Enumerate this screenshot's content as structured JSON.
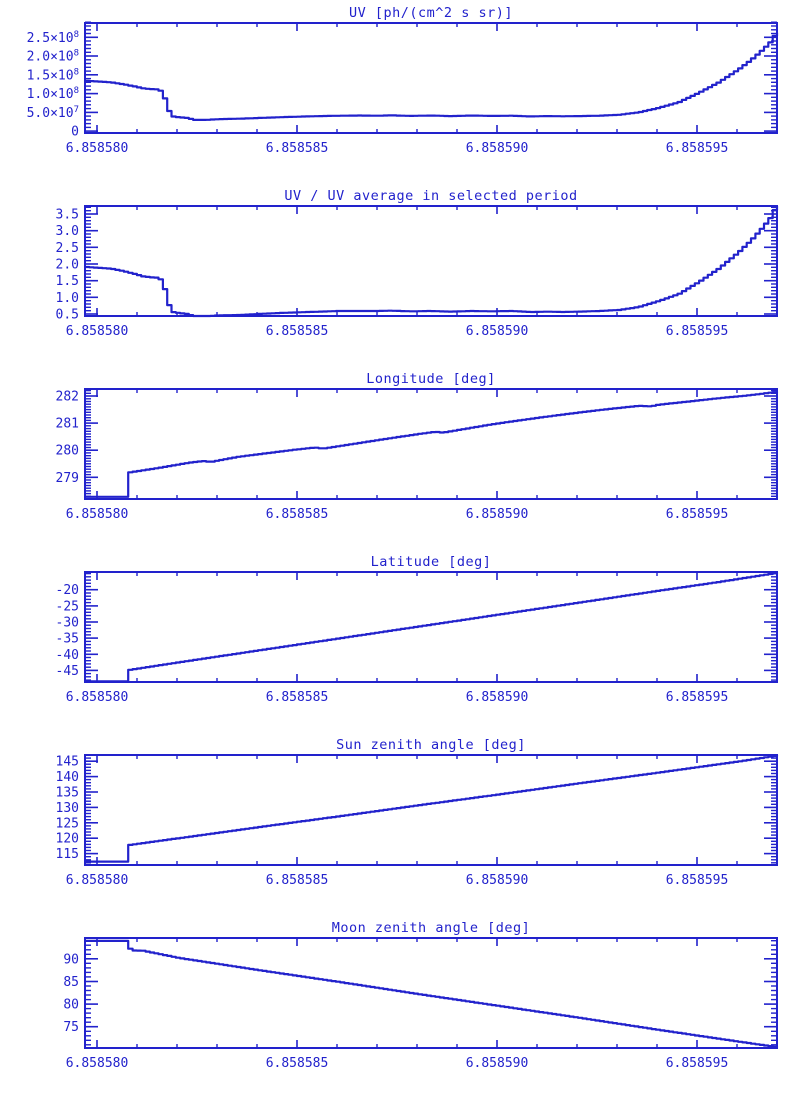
{
  "page": {
    "background": "#ffffff",
    "accent": "#2222cc"
  },
  "chart_data": [
    {
      "type": "line",
      "title": "UV [ph/(cm^2 s sr)]",
      "xlim": [
        6.8585797,
        6.858597
      ],
      "ylim": [
        -5000000.0,
        288000000.0
      ],
      "xticks": {
        "values": [
          6.85858,
          6.858585,
          6.85859,
          6.858595
        ],
        "labels": [
          "6.858580",
          "6.858585",
          "6.858590",
          "6.858595"
        ]
      },
      "xminor": 1e-06,
      "yticks": {
        "values": [
          0,
          50000000.0,
          100000000.0,
          150000000.0,
          200000000.0,
          250000000.0
        ],
        "labels": [
          "0",
          "5.0×10^7",
          "1.0×10^8",
          "1.5×10^8",
          "2.0×10^8",
          "2.5×10^8"
        ]
      },
      "yminor": 10000000.0,
      "series": [
        {
          "name": "UV",
          "x": [
            6.8585797,
            6.8585803,
            6.8585806,
            6.8585809,
            6.8585811,
            6.8585813,
            6.8585815,
            6.8585816,
            6.8585817,
            6.8585818,
            6.858582,
            6.8585822,
            6.8585824,
            6.8585827,
            6.858583,
            6.8585835,
            6.858584,
            6.8585845,
            6.858585,
            6.8585855,
            6.858586,
            6.8585865,
            6.858587,
            6.8585873,
            6.8585878,
            6.8585883,
            6.8585888,
            6.8585893,
            6.8585898,
            6.8585903,
            6.8585908,
            6.8585912,
            6.8585916,
            6.858592,
            6.8585925,
            6.858593,
            6.8585935,
            6.858594,
            6.8585945,
            6.858595,
            6.8585955,
            6.858596,
            6.8585963,
            6.8585966,
            6.8585968,
            6.8585969,
            6.85859695,
            6.858597
          ],
          "y": [
            134000000.0,
            130000000.0,
            125000000.0,
            119000000.0,
            114000000.0,
            112000000.0,
            111000000.0,
            102000000.0,
            70000000.0,
            40000000.0,
            37000000.0,
            35000000.0,
            30000000.0,
            30000000.0,
            32000000.0,
            33000000.0,
            35000000.0,
            37000000.0,
            38500000.0,
            40000000.0,
            41000000.0,
            41500000.0,
            41000000.0,
            42000000.0,
            40500000.0,
            41500000.0,
            40000000.0,
            41500000.0,
            40500000.0,
            41000000.0,
            39000000.0,
            40000000.0,
            39500000.0,
            40000000.0,
            41000000.0,
            43500000.0,
            50000000.0,
            62000000.0,
            77000000.0,
            102000000.0,
            130000000.0,
            165000000.0,
            189000000.0,
            217000000.0,
            238000000.0,
            255000000.0,
            245000000.0,
            262000000.0
          ]
        }
      ]
    },
    {
      "type": "line",
      "title": "UV / UV average in selected period",
      "xlim": [
        6.8585797,
        6.858597
      ],
      "ylim": [
        0.44,
        3.74
      ],
      "xticks": {
        "values": [
          6.85858,
          6.858585,
          6.85859,
          6.858595
        ],
        "labels": [
          "6.858580",
          "6.858585",
          "6.858590",
          "6.858595"
        ]
      },
      "xminor": 1e-06,
      "yticks": {
        "values": [
          0.5,
          1.0,
          1.5,
          2.0,
          2.5,
          3.0,
          3.5
        ],
        "labels": [
          "0.5",
          "1.0",
          "1.5",
          "2.0",
          "2.5",
          "3.0",
          "3.5"
        ]
      },
      "yminor": 0.1,
      "series": [
        {
          "name": "UV ratio",
          "x": [
            6.8585797,
            6.8585803,
            6.8585806,
            6.8585809,
            6.8585811,
            6.8585813,
            6.8585815,
            6.8585816,
            6.8585817,
            6.8585818,
            6.858582,
            6.8585822,
            6.8585824,
            6.8585827,
            6.858583,
            6.8585835,
            6.858584,
            6.8585845,
            6.858585,
            6.8585855,
            6.858586,
            6.8585865,
            6.858587,
            6.8585873,
            6.8585878,
            6.8585883,
            6.8585888,
            6.8585893,
            6.8585898,
            6.8585903,
            6.8585908,
            6.8585912,
            6.8585916,
            6.858592,
            6.8585925,
            6.858593,
            6.8585935,
            6.858594,
            6.8585945,
            6.858595,
            6.8585955,
            6.858596,
            6.8585963,
            6.8585966,
            6.8585968,
            6.8585969,
            6.85859695,
            6.858597
          ],
          "y": [
            1.91,
            1.86,
            1.79,
            1.7,
            1.63,
            1.6,
            1.59,
            1.46,
            1.0,
            0.57,
            0.53,
            0.5,
            0.43,
            0.43,
            0.46,
            0.47,
            0.5,
            0.53,
            0.55,
            0.57,
            0.59,
            0.59,
            0.59,
            0.6,
            0.58,
            0.59,
            0.57,
            0.59,
            0.58,
            0.59,
            0.56,
            0.57,
            0.56,
            0.57,
            0.59,
            0.62,
            0.71,
            0.89,
            1.1,
            1.46,
            1.86,
            2.36,
            2.7,
            3.1,
            3.4,
            3.64,
            3.5,
            3.74
          ]
        }
      ]
    },
    {
      "type": "line",
      "title": "Longitude [deg]",
      "xlim": [
        6.8585797,
        6.858597
      ],
      "ylim": [
        278.2,
        282.26
      ],
      "xticks": {
        "values": [
          6.85858,
          6.858585,
          6.85859,
          6.858595
        ],
        "labels": [
          "6.858580",
          "6.858585",
          "6.858590",
          "6.858595"
        ]
      },
      "xminor": 1e-06,
      "yticks": {
        "values": [
          279,
          280,
          281,
          282
        ],
        "labels": [
          "279",
          "280",
          "281",
          "282"
        ]
      },
      "yminor": 0.1,
      "series": [
        {
          "name": "Longitude",
          "x": [
            6.8585797,
            6.85858074,
            6.85858076,
            6.8585815,
            6.8585823,
            6.8585826,
            6.8585828,
            6.8585835,
            6.8585849,
            6.8585854,
            6.8585856,
            6.858586,
            6.858587,
            6.858588,
            6.8585884,
            6.8585886,
            6.858589,
            6.8585898,
            6.8585905,
            6.8585915,
            6.8585925,
            6.8585935,
            6.8585938,
            6.858594,
            6.8585945,
            6.8585955,
            6.8585962,
            6.858597
          ],
          "y": [
            278.28,
            278.28,
            279.18,
            279.35,
            279.55,
            279.6,
            279.57,
            279.76,
            280.02,
            280.1,
            280.06,
            280.15,
            280.38,
            280.6,
            280.68,
            280.65,
            280.75,
            280.95,
            281.1,
            281.3,
            281.48,
            281.64,
            281.62,
            281.68,
            281.76,
            281.92,
            282.02,
            282.16
          ]
        }
      ]
    },
    {
      "type": "line",
      "title": "Latitude [deg]",
      "xlim": [
        6.8585797,
        6.858597
      ],
      "ylim": [
        -48.6,
        -14.5
      ],
      "xticks": {
        "values": [
          6.85858,
          6.858585,
          6.85859,
          6.858595
        ],
        "labels": [
          "6.858580",
          "6.858585",
          "6.858590",
          "6.858595"
        ]
      },
      "xminor": 1e-06,
      "yticks": {
        "values": [
          -45,
          -40,
          -35,
          -30,
          -25,
          -20
        ],
        "labels": [
          "-45",
          "-40",
          "-35",
          "-30",
          "-25",
          "-20"
        ]
      },
      "yminor": 1,
      "series": [
        {
          "name": "Latitude",
          "x": [
            6.8585797,
            6.85858072,
            6.85858076,
            6.858582,
            6.858584,
            6.858586,
            6.858588,
            6.85859,
            6.858592,
            6.858594,
            6.8585955,
            6.858597
          ],
          "y": [
            -48.4,
            -48.4,
            -44.85,
            -42.5,
            -38.8,
            -35.1,
            -31.4,
            -27.7,
            -24.0,
            -20.3,
            -17.6,
            -14.7
          ]
        }
      ]
    },
    {
      "type": "line",
      "title": "Sun zenith angle [deg]",
      "xlim": [
        6.8585797,
        6.858597
      ],
      "ylim": [
        111.3,
        147.0
      ],
      "xticks": {
        "values": [
          6.85858,
          6.858585,
          6.85859,
          6.858595
        ],
        "labels": [
          "6.858580",
          "6.858585",
          "6.858590",
          "6.858595"
        ]
      },
      "xminor": 1e-06,
      "yticks": {
        "values": [
          115,
          120,
          125,
          130,
          135,
          140,
          145
        ],
        "labels": [
          "115",
          "120",
          "125",
          "130",
          "135",
          "140",
          "145"
        ]
      },
      "yminor": 1,
      "series": [
        {
          "name": "Sun zenith angle",
          "x": [
            6.8585797,
            6.8585807,
            6.85858076,
            6.858582,
            6.858584,
            6.858586,
            6.858588,
            6.85859,
            6.858592,
            6.858594,
            6.858596,
            6.858597
          ],
          "y": [
            112.4,
            112.4,
            117.8,
            120.0,
            123.6,
            127.1,
            130.7,
            134.2,
            137.8,
            141.3,
            144.9,
            146.9
          ]
        }
      ]
    },
    {
      "type": "line",
      "title": "Moon zenith angle [deg]",
      "xlim": [
        6.8585797,
        6.858597
      ],
      "ylim": [
        70.3,
        94.6
      ],
      "xticks": {
        "values": [
          6.85858,
          6.858585,
          6.85859,
          6.858595
        ],
        "labels": [
          "6.858580",
          "6.858585",
          "6.858590",
          "6.858595"
        ]
      },
      "xminor": 1e-06,
      "yticks": {
        "values": [
          75,
          80,
          85,
          90
        ],
        "labels": [
          "75",
          "80",
          "85",
          "90"
        ]
      },
      "yminor": 1,
      "series": [
        {
          "name": "Moon zenith angle",
          "x": [
            6.8585797,
            6.8585807,
            6.8585808,
            6.8585811,
            6.858582,
            6.858584,
            6.858586,
            6.858588,
            6.85859,
            6.858592,
            6.858594,
            6.858596,
            6.858597
          ],
          "y": [
            93.95,
            93.95,
            91.85,
            91.8,
            90.2,
            87.5,
            84.9,
            82.2,
            79.6,
            77.0,
            74.3,
            71.7,
            70.45
          ]
        }
      ]
    }
  ]
}
